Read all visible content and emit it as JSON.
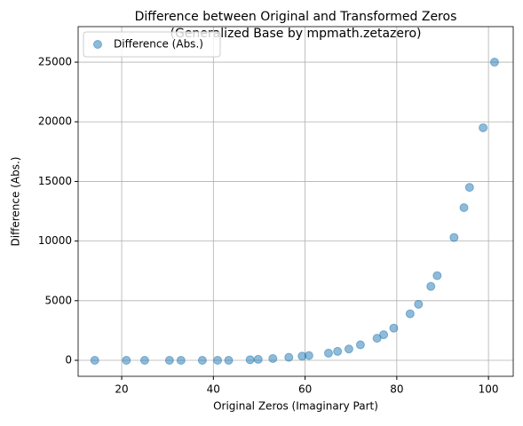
{
  "chart_data": {
    "type": "scatter",
    "title": [
      "Difference between Original and Transformed Zeros",
      "(Generalized Base by mpmath.zetazero)"
    ],
    "x_label": "Original Zeros (Imaginary Part)",
    "y_label": "Difference (Abs.)",
    "x": [
      14.13,
      21.02,
      25.01,
      30.42,
      32.94,
      37.59,
      40.92,
      43.33,
      48.01,
      49.77,
      52.97,
      56.45,
      59.35,
      60.83,
      65.11,
      67.08,
      69.55,
      72.07,
      75.7,
      77.14,
      79.34,
      82.91,
      84.74,
      87.43,
      88.81,
      92.49,
      94.65,
      95.87,
      98.83,
      101.32
    ],
    "series": [
      {
        "name": "Difference (Abs.)",
        "color": "#1f77b4",
        "opacity": 0.5,
        "values": [
          0,
          0,
          0,
          0,
          0,
          0,
          0,
          0,
          50,
          80,
          150,
          250,
          350,
          400,
          600,
          750,
          950,
          1300,
          1850,
          2150,
          2700,
          3900,
          4700,
          6200,
          7100,
          10300,
          12800,
          14500,
          19500,
          25000
        ]
      }
    ],
    "xlim": [
      10.5,
      105.4
    ],
    "ylim": [
      -1340,
      27980
    ],
    "xticks": [
      20,
      40,
      60,
      80,
      100
    ],
    "yticks": [
      0,
      5000,
      10000,
      15000,
      20000,
      25000
    ],
    "grid": true,
    "legend": "upper left"
  }
}
